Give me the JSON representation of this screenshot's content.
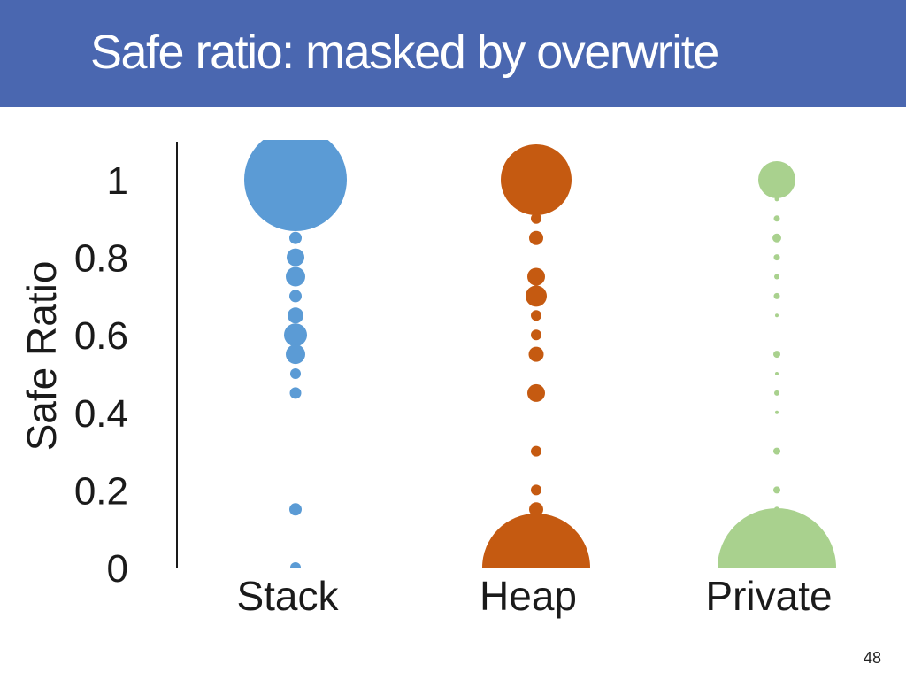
{
  "slide": {
    "title": "Safe ratio: masked by overwrite",
    "page_number": "48"
  },
  "chart_data": {
    "type": "scatter",
    "title": "",
    "xlabel": "",
    "ylabel": "Safe Ratio",
    "categories": [
      "Stack",
      "Heap",
      "Private"
    ],
    "ylim": [
      0,
      1
    ],
    "yticks": [
      {
        "value": 0,
        "label": "0"
      },
      {
        "value": 0.2,
        "label": "0.2"
      },
      {
        "value": 0.4,
        "label": "0.4"
      },
      {
        "value": 0.6,
        "label": "0.6"
      },
      {
        "value": 0.8,
        "label": "0.8"
      },
      {
        "value": 1,
        "label": "1"
      }
    ],
    "grid": false,
    "legend": "none",
    "marker_size_note": "bubble size encodes relative frequency",
    "series": [
      {
        "name": "Stack",
        "color": "#5b9bd5",
        "points": [
          {
            "y": 1.0,
            "size": 58
          },
          {
            "y": 0.85,
            "size": 7
          },
          {
            "y": 0.8,
            "size": 10
          },
          {
            "y": 0.75,
            "size": 11
          },
          {
            "y": 0.7,
            "size": 7
          },
          {
            "y": 0.65,
            "size": 9
          },
          {
            "y": 0.6,
            "size": 13
          },
          {
            "y": 0.55,
            "size": 11
          },
          {
            "y": 0.5,
            "size": 6
          },
          {
            "y": 0.45,
            "size": 6.5
          },
          {
            "y": 0.15,
            "size": 7
          },
          {
            "y": 0.0,
            "size": 6
          }
        ]
      },
      {
        "name": "Heap",
        "color": "#c55a11",
        "points": [
          {
            "y": 1.0,
            "size": 40
          },
          {
            "y": 0.9,
            "size": 6
          },
          {
            "y": 0.85,
            "size": 8
          },
          {
            "y": 0.75,
            "size": 10
          },
          {
            "y": 0.7,
            "size": 12
          },
          {
            "y": 0.65,
            "size": 6
          },
          {
            "y": 0.6,
            "size": 6
          },
          {
            "y": 0.55,
            "size": 8.5
          },
          {
            "y": 0.45,
            "size": 10
          },
          {
            "y": 0.3,
            "size": 6
          },
          {
            "y": 0.2,
            "size": 6
          },
          {
            "y": 0.15,
            "size": 8
          },
          {
            "y": 0.0,
            "size": 61
          }
        ]
      },
      {
        "name": "Private",
        "color": "#a9d18e",
        "points": [
          {
            "y": 1.0,
            "size": 21
          },
          {
            "y": 0.95,
            "size": 2.5
          },
          {
            "y": 0.9,
            "size": 3.5
          },
          {
            "y": 0.85,
            "size": 5
          },
          {
            "y": 0.8,
            "size": 3.5
          },
          {
            "y": 0.75,
            "size": 3
          },
          {
            "y": 0.7,
            "size": 3.5
          },
          {
            "y": 0.65,
            "size": 2
          },
          {
            "y": 0.55,
            "size": 4
          },
          {
            "y": 0.5,
            "size": 2
          },
          {
            "y": 0.45,
            "size": 3
          },
          {
            "y": 0.4,
            "size": 2
          },
          {
            "y": 0.3,
            "size": 4
          },
          {
            "y": 0.2,
            "size": 4
          },
          {
            "y": 0.15,
            "size": 3
          },
          {
            "y": 0.0,
            "size": 67
          }
        ]
      }
    ]
  }
}
